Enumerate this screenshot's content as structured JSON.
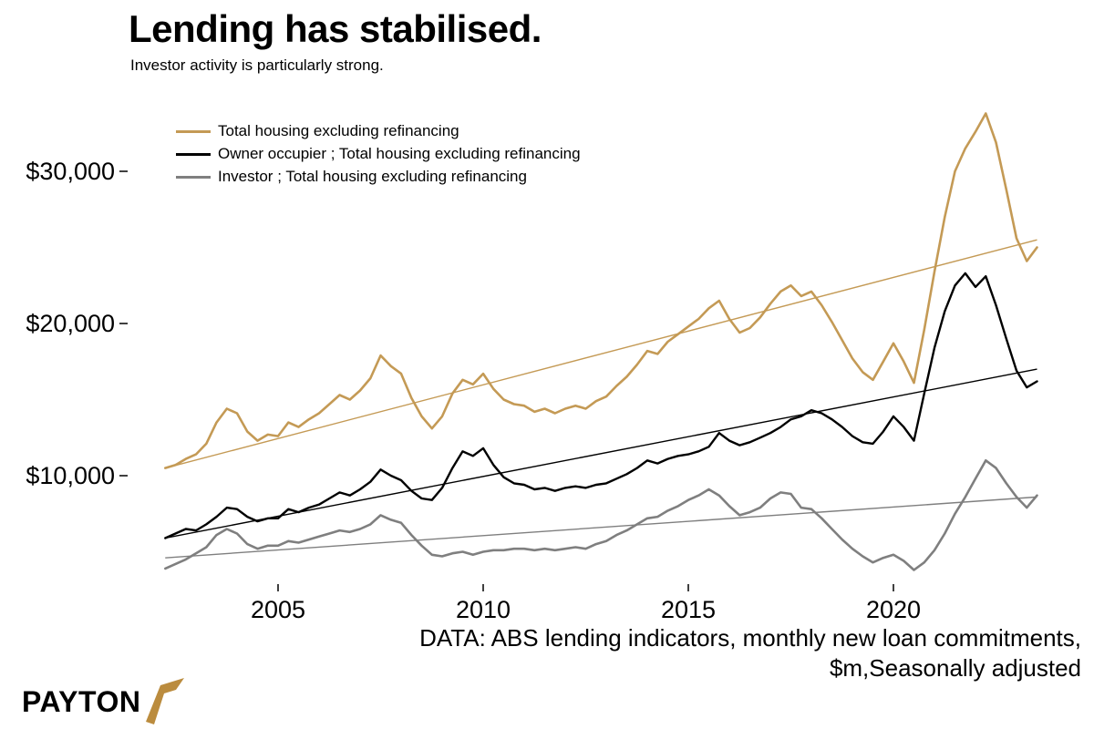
{
  "chart_data": {
    "type": "line",
    "title": "Lending has stabilised.",
    "subtitle": "Investor activity is particularly strong.",
    "caption_line1": "DATA: ABS lending indicators, monthly new loan commitments,",
    "caption_line2": "$m,Seasonally adjusted",
    "grid": "off",
    "legend_position": "top-left",
    "x_start": 2002.25,
    "x_step": 0.25,
    "x_range": [
      2002.25,
      2023.5
    ],
    "y_range": [
      2500,
      35500
    ],
    "x_ticks": [
      {
        "value": 2005,
        "label": "2005"
      },
      {
        "value": 2010,
        "label": "2010"
      },
      {
        "value": 2015,
        "label": "2015"
      },
      {
        "value": 2020,
        "label": "2020"
      }
    ],
    "y_ticks": [
      {
        "value": 10000,
        "label": "$10,000"
      },
      {
        "value": 20000,
        "label": "$20,000"
      },
      {
        "value": 30000,
        "label": "$30,000"
      }
    ],
    "series": [
      {
        "name": "Total housing excluding refinancing",
        "color": "#c49a55",
        "trend": {
          "x0": 2002.25,
          "y0": 10500,
          "x1": 2023.5,
          "y1": 25500
        },
        "values": [
          10500,
          10700,
          11100,
          11400,
          12100,
          13500,
          14400,
          14100,
          12900,
          12300,
          12700,
          12600,
          13500,
          13200,
          13700,
          14100,
          14700,
          15300,
          15000,
          15600,
          16400,
          17900,
          17200,
          16700,
          15100,
          13900,
          13100,
          13900,
          15400,
          16300,
          16000,
          16700,
          15700,
          15000,
          14700,
          14600,
          14200,
          14400,
          14100,
          14400,
          14600,
          14400,
          14900,
          15200,
          15900,
          16500,
          17300,
          18200,
          18000,
          18800,
          19300,
          19800,
          20300,
          21000,
          21500,
          20300,
          19400,
          19700,
          20400,
          21300,
          22100,
          22500,
          21800,
          22100,
          21200,
          20100,
          18900,
          17700,
          16800,
          16300,
          17500,
          18700,
          17500,
          16100,
          19600,
          23400,
          27000,
          30000,
          31500,
          32600,
          33800,
          31900,
          28800,
          25600,
          24100,
          25000
        ]
      },
      {
        "name": "Owner occupier ;  Total housing excluding refinancing",
        "color": "#000000",
        "trend": {
          "x0": 2002.25,
          "y0": 5900,
          "x1": 2023.5,
          "y1": 17000
        },
        "values": [
          5900,
          6200,
          6500,
          6400,
          6800,
          7300,
          7900,
          7800,
          7300,
          7000,
          7200,
          7200,
          7800,
          7600,
          7900,
          8100,
          8500,
          8900,
          8700,
          9100,
          9600,
          10400,
          10000,
          9700,
          9000,
          8500,
          8400,
          9200,
          10500,
          11600,
          11300,
          11800,
          10700,
          9900,
          9500,
          9400,
          9100,
          9200,
          9000,
          9200,
          9300,
          9200,
          9400,
          9500,
          9800,
          10100,
          10500,
          11000,
          10800,
          11100,
          11300,
          11400,
          11600,
          11900,
          12800,
          12300,
          12000,
          12200,
          12500,
          12800,
          13200,
          13700,
          13900,
          14300,
          14100,
          13700,
          13200,
          12600,
          12200,
          12100,
          12900,
          13900,
          13200,
          12300,
          15400,
          18400,
          20800,
          22500,
          23300,
          22400,
          23100,
          21200,
          19000,
          16900,
          15800,
          16200
        ]
      },
      {
        "name": "Investor ;  Total housing excluding refinancing",
        "color": "#7f7f7f",
        "trend": {
          "x0": 2002.25,
          "y0": 4600,
          "x1": 2023.5,
          "y1": 8600
        },
        "values": [
          3900,
          4200,
          4500,
          4900,
          5300,
          6100,
          6500,
          6200,
          5500,
          5200,
          5400,
          5400,
          5700,
          5600,
          5800,
          6000,
          6200,
          6400,
          6300,
          6500,
          6800,
          7400,
          7100,
          6900,
          6100,
          5400,
          4800,
          4700,
          4900,
          5000,
          4800,
          5000,
          5100,
          5100,
          5200,
          5200,
          5100,
          5200,
          5100,
          5200,
          5300,
          5200,
          5500,
          5700,
          6100,
          6400,
          6800,
          7200,
          7300,
          7700,
          8000,
          8400,
          8700,
          9100,
          8700,
          8000,
          7400,
          7600,
          7900,
          8500,
          8900,
          8800,
          7900,
          7800,
          7200,
          6500,
          5800,
          5200,
          4700,
          4300,
          4600,
          4800,
          4400,
          3800,
          4300,
          5100,
          6200,
          7500,
          8600,
          9800,
          11000,
          10500,
          9500,
          8600,
          7900,
          8700
        ]
      }
    ]
  },
  "logo": {
    "text": "PAYTON",
    "color": "#bb8c3e"
  }
}
